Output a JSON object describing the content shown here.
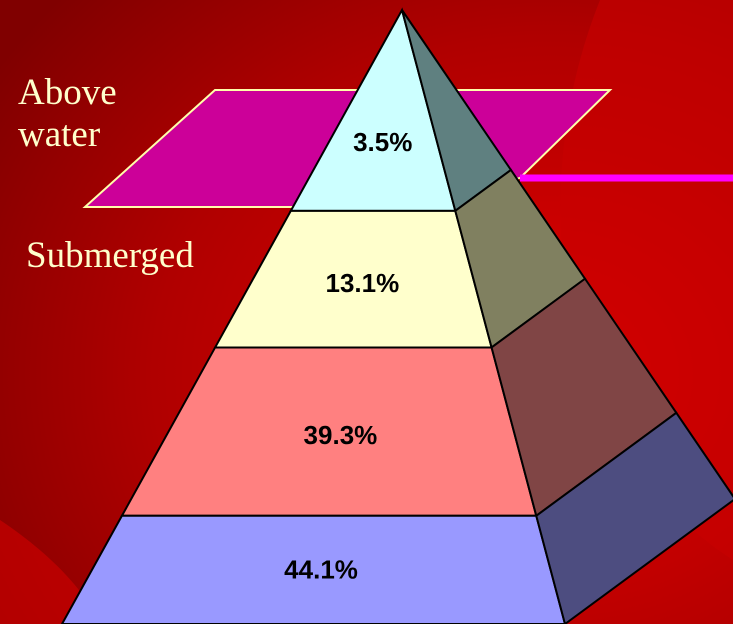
{
  "chart_data": {
    "type": "pyramid",
    "values": [
      3.5,
      13.1,
      39.3,
      44.1
    ],
    "value_labels": [
      "3.5%",
      "13.1%",
      "39.3%",
      "44.1%"
    ],
    "colors": [
      "#ccffff",
      "#ffffcc",
      "#ff8080",
      "#9999ff"
    ],
    "side_colors": [
      "#5f8080",
      "#808060",
      "#804545",
      "#4d4d80"
    ],
    "annotations": [
      "Above water",
      "Submerged"
    ]
  }
}
